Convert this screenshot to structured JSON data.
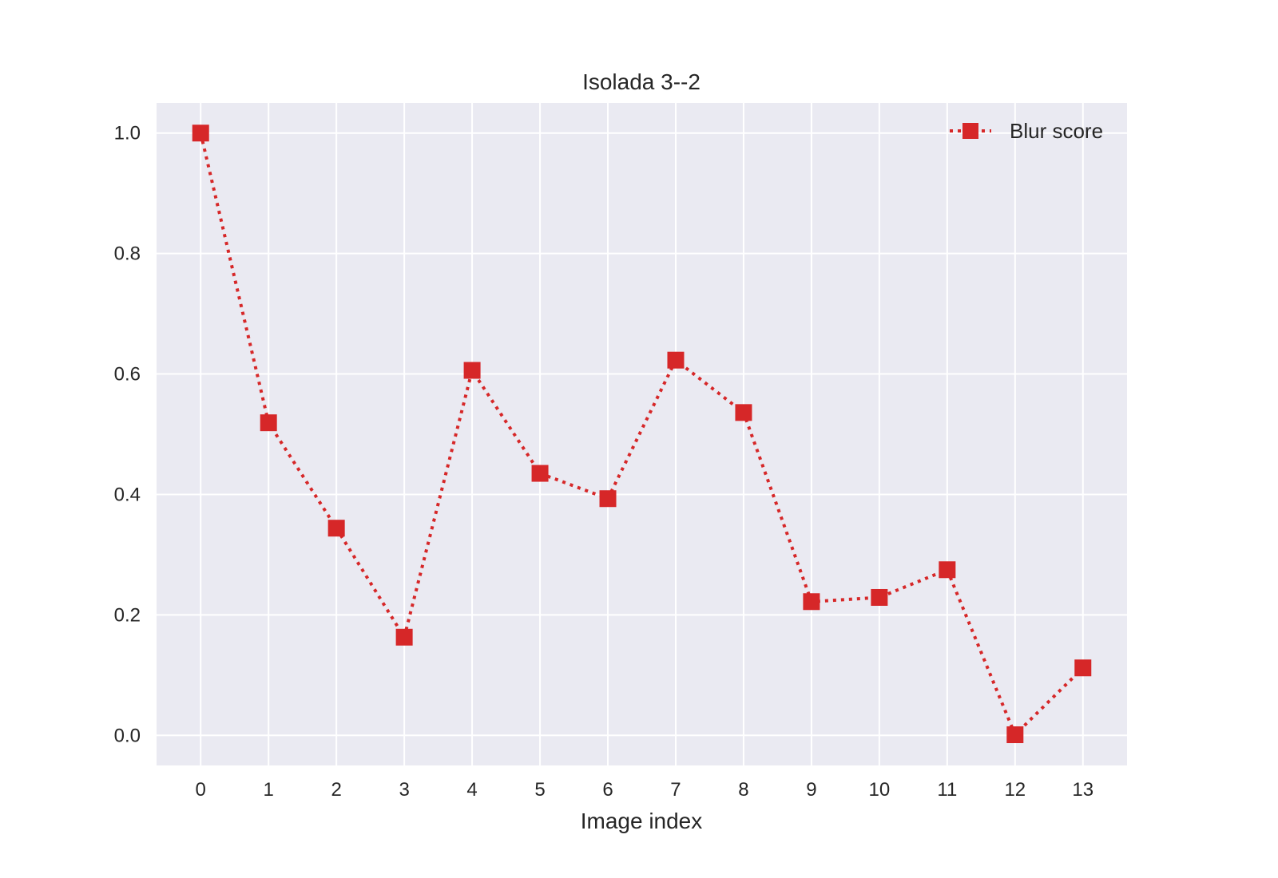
{
  "chart_data": {
    "type": "line",
    "title": "Isolada 3--2",
    "xlabel": "Image index",
    "ylabel": "",
    "x": [
      0,
      1,
      2,
      3,
      4,
      5,
      6,
      7,
      8,
      9,
      10,
      11,
      12,
      13
    ],
    "x_tick_labels": [
      "0",
      "1",
      "2",
      "3",
      "4",
      "5",
      "6",
      "7",
      "8",
      "9",
      "10",
      "11",
      "12",
      "13"
    ],
    "y_tick_labels": [
      "0.0",
      "0.2",
      "0.4",
      "0.6",
      "0.8",
      "1.0"
    ],
    "y_ticks": [
      0.0,
      0.2,
      0.4,
      0.6,
      0.8,
      1.0
    ],
    "xlim": [
      -0.65,
      13.65
    ],
    "ylim": [
      -0.05,
      1.05
    ],
    "grid": true,
    "legend_position": "top-right",
    "series": [
      {
        "name": "Blur score",
        "color": "#d62728",
        "line_style": "dotted",
        "marker": "square",
        "values": [
          1.0,
          0.519,
          0.344,
          0.163,
          0.606,
          0.435,
          0.393,
          0.623,
          0.536,
          0.222,
          0.229,
          0.275,
          0.001,
          0.112
        ]
      }
    ]
  },
  "style": {
    "plot_background": "#eaeaf2",
    "grid_color": "#ffffff",
    "text_color": "#262626"
  }
}
